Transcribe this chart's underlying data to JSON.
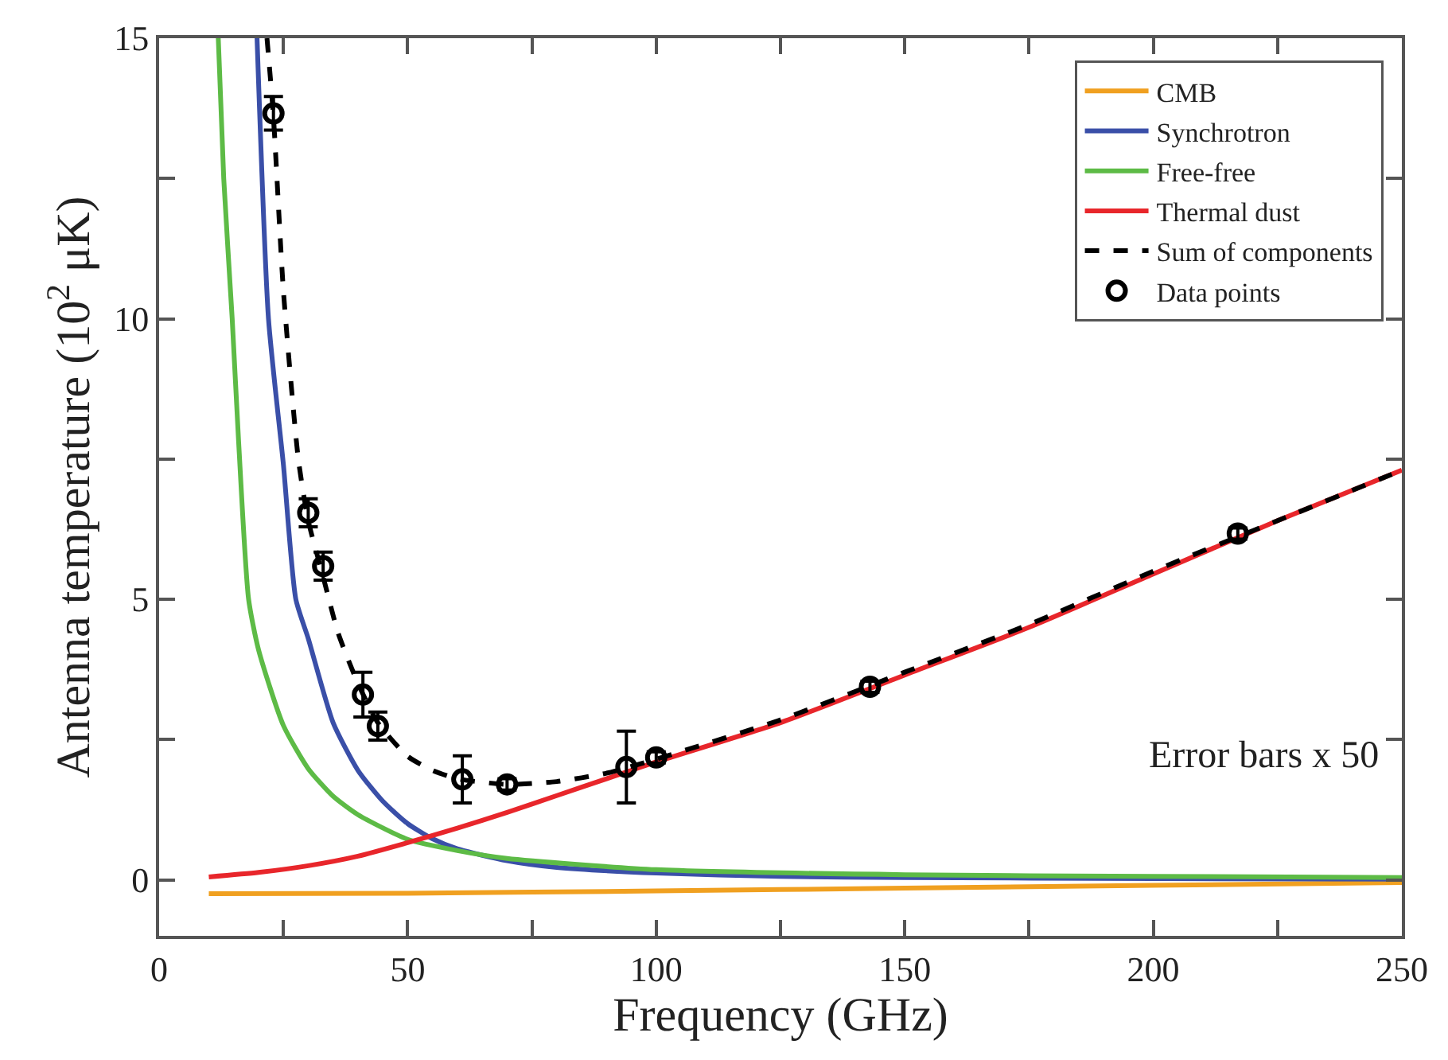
{
  "chart_data": {
    "type": "line",
    "xlabel": "Frequency (GHz)",
    "ylabel": "Antenna temperature (10$^{2}$ μK)",
    "xlim": [
      0,
      250
    ],
    "ylim": [
      -1,
      15
    ],
    "xticks": [
      0,
      {
        "value": 25,
        "label": null
      },
      50,
      {
        "value": 75,
        "label": null
      },
      100,
      {
        "value": 125,
        "label": null
      },
      150,
      {
        "value": 175,
        "label": null
      },
      200,
      {
        "value": 225,
        "label": null
      },
      250
    ],
    "yticks": [
      0,
      {
        "value": 2.5,
        "label": null
      },
      5,
      {
        "value": 7.5,
        "label": null
      },
      10,
      {
        "value": 12.5,
        "label": null
      },
      15
    ],
    "grid": false,
    "legend": "top right",
    "marker": "none",
    "line_style": "solid",
    "annotations": [
      "Error bars x 50"
    ],
    "series": [
      {
        "name": "CMB",
        "color": "#f0a020",
        "x": [
          10,
          50,
          100,
          150,
          200,
          250
        ],
        "values": [
          -0.25,
          -0.24,
          -0.2,
          -0.15,
          -0.1,
          -0.05
        ]
      },
      {
        "name": "Synchrotron",
        "color": "#3a4fa8",
        "x": [
          19.7,
          22,
          25,
          27.5,
          30,
          35,
          40,
          45,
          50,
          55,
          60,
          70,
          80,
          100,
          125,
          150,
          200,
          250
        ],
        "values": [
          15,
          10,
          7.4,
          5,
          4.3,
          2.8,
          1.95,
          1.4,
          1.0,
          0.73,
          0.55,
          0.34,
          0.22,
          0.12,
          0.06,
          0.04,
          0.02,
          0.01
        ]
      },
      {
        "name": "Free-free",
        "color": "#5dbb46",
        "x": [
          11.9,
          13,
          14.7,
          16,
          18,
          20,
          25,
          30,
          35,
          40,
          50,
          60,
          70,
          100,
          150,
          200,
          250
        ],
        "values": [
          15,
          12.5,
          10,
          7.8,
          5,
          4.1,
          2.75,
          1.98,
          1.49,
          1.16,
          0.72,
          0.52,
          0.38,
          0.18,
          0.09,
          0.06,
          0.04
        ]
      },
      {
        "name": "Thermal dust",
        "color": "#e8262b",
        "x": [
          10,
          20,
          30,
          40,
          50,
          60,
          70,
          80,
          90,
          100,
          125,
          150,
          175,
          200,
          225,
          250
        ],
        "values": [
          0.05,
          0.13,
          0.25,
          0.42,
          0.66,
          0.92,
          1.2,
          1.5,
          1.8,
          2.1,
          2.8,
          3.65,
          4.5,
          5.45,
          6.4,
          7.3
        ]
      },
      {
        "name": "Sum of components",
        "color": "#000000",
        "line_style": "dashed",
        "x": [
          21.7,
          23,
          25,
          28,
          30,
          33,
          36,
          40,
          44,
          50,
          55,
          60,
          70,
          80,
          90,
          100,
          125,
          150,
          175,
          200,
          225,
          250
        ],
        "values": [
          15,
          13.6,
          10.5,
          7.5,
          6.4,
          5.4,
          4.4,
          3.5,
          2.8,
          2.2,
          1.95,
          1.8,
          1.7,
          1.75,
          1.9,
          2.15,
          2.85,
          3.7,
          4.55,
          5.5,
          6.4,
          7.3
        ]
      },
      {
        "name": "Data points",
        "type": "scatter",
        "marker": "circle",
        "color": "#000000",
        "x": [
          23,
          30,
          33,
          41,
          44,
          61,
          70,
          94,
          100,
          143,
          217
        ],
        "values": [
          13.66,
          6.54,
          5.59,
          3.3,
          2.74,
          1.79,
          1.7,
          2.01,
          2.18,
          3.44,
          6.17
        ],
        "errors": [
          0.3,
          0.25,
          0.25,
          0.4,
          0.25,
          0.42,
          0.1,
          0.64,
          0.1,
          0.1,
          0.1
        ]
      }
    ]
  }
}
